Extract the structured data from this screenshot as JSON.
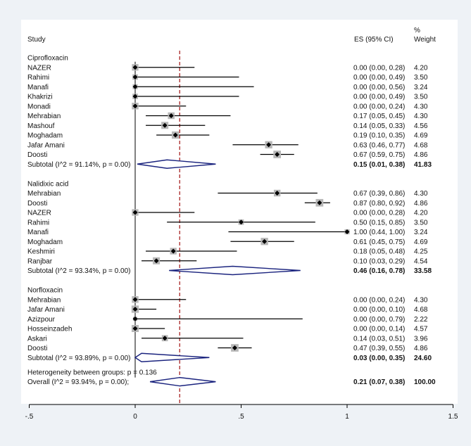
{
  "chart_data": {
    "type": "forest",
    "x_axis": {
      "range": [
        -0.5,
        1.5
      ],
      "ticks": [
        -0.5,
        0,
        0.5,
        1,
        1.5
      ],
      "tick_labels": [
        "-.5",
        "0",
        ".5",
        "1",
        "1.5"
      ]
    },
    "reference_line": 0.21,
    "headers": {
      "study": "Study",
      "es": "ES (95% CI)",
      "weight_top": "%",
      "weight_bottom": "Weight"
    },
    "groups": [
      {
        "name": "Ciprofloxacin",
        "studies": [
          {
            "name": "NAZER",
            "es": 0.0,
            "lo": 0.0,
            "hi": 0.28,
            "label": "0.00 (0.00, 0.28)",
            "weight": "4.20"
          },
          {
            "name": "Rahimi",
            "es": 0.0,
            "lo": 0.0,
            "hi": 0.49,
            "label": "0.00 (0.00, 0.49)",
            "weight": "3.50"
          },
          {
            "name": "Manafi",
            "es": 0.0,
            "lo": 0.0,
            "hi": 0.56,
            "label": "0.00 (0.00, 0.56)",
            "weight": "3.24"
          },
          {
            "name": "Khakrizi",
            "es": 0.0,
            "lo": 0.0,
            "hi": 0.49,
            "label": "0.00 (0.00, 0.49)",
            "weight": "3.50"
          },
          {
            "name": "Monadi",
            "es": 0.0,
            "lo": 0.0,
            "hi": 0.24,
            "label": "0.00 (0.00, 0.24)",
            "weight": "4.30"
          },
          {
            "name": "Mehrabian",
            "es": 0.17,
            "lo": 0.05,
            "hi": 0.45,
            "label": "0.17 (0.05, 0.45)",
            "weight": "4.30"
          },
          {
            "name": "Mashouf",
            "es": 0.14,
            "lo": 0.05,
            "hi": 0.33,
            "label": "0.14 (0.05, 0.33)",
            "weight": "4.56"
          },
          {
            "name": "Moghadam",
            "es": 0.19,
            "lo": 0.1,
            "hi": 0.35,
            "label": "0.19 (0.10, 0.35)",
            "weight": "4.69"
          },
          {
            "name": "Jafar Amani",
            "es": 0.63,
            "lo": 0.46,
            "hi": 0.77,
            "label": "0.63 (0.46, 0.77)",
            "weight": "4.68"
          },
          {
            "name": "Doosti",
            "es": 0.67,
            "lo": 0.59,
            "hi": 0.75,
            "label": "0.67 (0.59, 0.75)",
            "weight": "4.86"
          }
        ],
        "subtotal": {
          "name": "Subtotal  (I^2 = 91.14%, p = 0.00)",
          "es": 0.15,
          "lo": 0.01,
          "hi": 0.38,
          "label": "0.15 (0.01, 0.38)",
          "weight": "41.83"
        }
      },
      {
        "name": "Nalidixic acid",
        "studies": [
          {
            "name": "Mehrabian",
            "es": 0.67,
            "lo": 0.39,
            "hi": 0.86,
            "label": "0.67 (0.39, 0.86)",
            "weight": "4.30"
          },
          {
            "name": "Doosti",
            "es": 0.87,
            "lo": 0.8,
            "hi": 0.92,
            "label": "0.87 (0.80, 0.92)",
            "weight": "4.86"
          },
          {
            "name": "NAZER",
            "es": 0.0,
            "lo": 0.0,
            "hi": 0.28,
            "label": "0.00 (0.00, 0.28)",
            "weight": "4.20"
          },
          {
            "name": "Rahimi",
            "es": 0.5,
            "lo": 0.15,
            "hi": 0.85,
            "label": "0.50 (0.15, 0.85)",
            "weight": "3.50"
          },
          {
            "name": "Manafi",
            "es": 1.0,
            "lo": 0.44,
            "hi": 1.0,
            "label": "1.00 (0.44, 1.00)",
            "weight": "3.24"
          },
          {
            "name": "Moghadam",
            "es": 0.61,
            "lo": 0.45,
            "hi": 0.75,
            "label": "0.61 (0.45, 0.75)",
            "weight": "4.69"
          },
          {
            "name": "Keshmiri",
            "es": 0.18,
            "lo": 0.05,
            "hi": 0.48,
            "label": "0.18 (0.05, 0.48)",
            "weight": "4.25"
          },
          {
            "name": "Ranjbar",
            "es": 0.1,
            "lo": 0.03,
            "hi": 0.29,
            "label": "0.10 (0.03, 0.29)",
            "weight": "4.54"
          }
        ],
        "subtotal": {
          "name": "Subtotal  (I^2 = 93.34%, p = 0.00)",
          "es": 0.46,
          "lo": 0.16,
          "hi": 0.78,
          "label": "0.46 (0.16, 0.78)",
          "weight": "33.58"
        }
      },
      {
        "name": "Norfloxacin",
        "studies": [
          {
            "name": "Mehrabian",
            "es": 0.0,
            "lo": 0.0,
            "hi": 0.24,
            "label": "0.00 (0.00, 0.24)",
            "weight": "4.30"
          },
          {
            "name": "Jafar Amani",
            "es": 0.0,
            "lo": 0.0,
            "hi": 0.1,
            "label": "0.00 (0.00, 0.10)",
            "weight": "4.68"
          },
          {
            "name": "Azizpour",
            "es": 0.0,
            "lo": 0.0,
            "hi": 0.79,
            "label": "0.00 (0.00, 0.79)",
            "weight": "2.22"
          },
          {
            "name": "Hosseinzadeh",
            "es": 0.0,
            "lo": 0.0,
            "hi": 0.14,
            "label": "0.00 (0.00, 0.14)",
            "weight": "4.57"
          },
          {
            "name": "Askari",
            "es": 0.14,
            "lo": 0.03,
            "hi": 0.51,
            "label": "0.14 (0.03, 0.51)",
            "weight": "3.96"
          },
          {
            "name": "Doosti",
            "es": 0.47,
            "lo": 0.39,
            "hi": 0.55,
            "label": "0.47 (0.39, 0.55)",
            "weight": "4.86"
          }
        ],
        "subtotal": {
          "name": "Subtotal  (I^2 = 93.89%, p = 0.00)",
          "es": 0.03,
          "lo": 0.0,
          "hi": 0.35,
          "label": "0.03 (0.00, 0.35)",
          "weight": "24.60"
        }
      }
    ],
    "heterogeneity": "Heterogeneity between groups: p = 0.136",
    "overall": {
      "name": "Overall  (I^2 = 93.94%, p = 0.00);",
      "es": 0.21,
      "lo": 0.07,
      "hi": 0.38,
      "label": "0.21 (0.07, 0.38)",
      "weight": "100.00"
    }
  }
}
